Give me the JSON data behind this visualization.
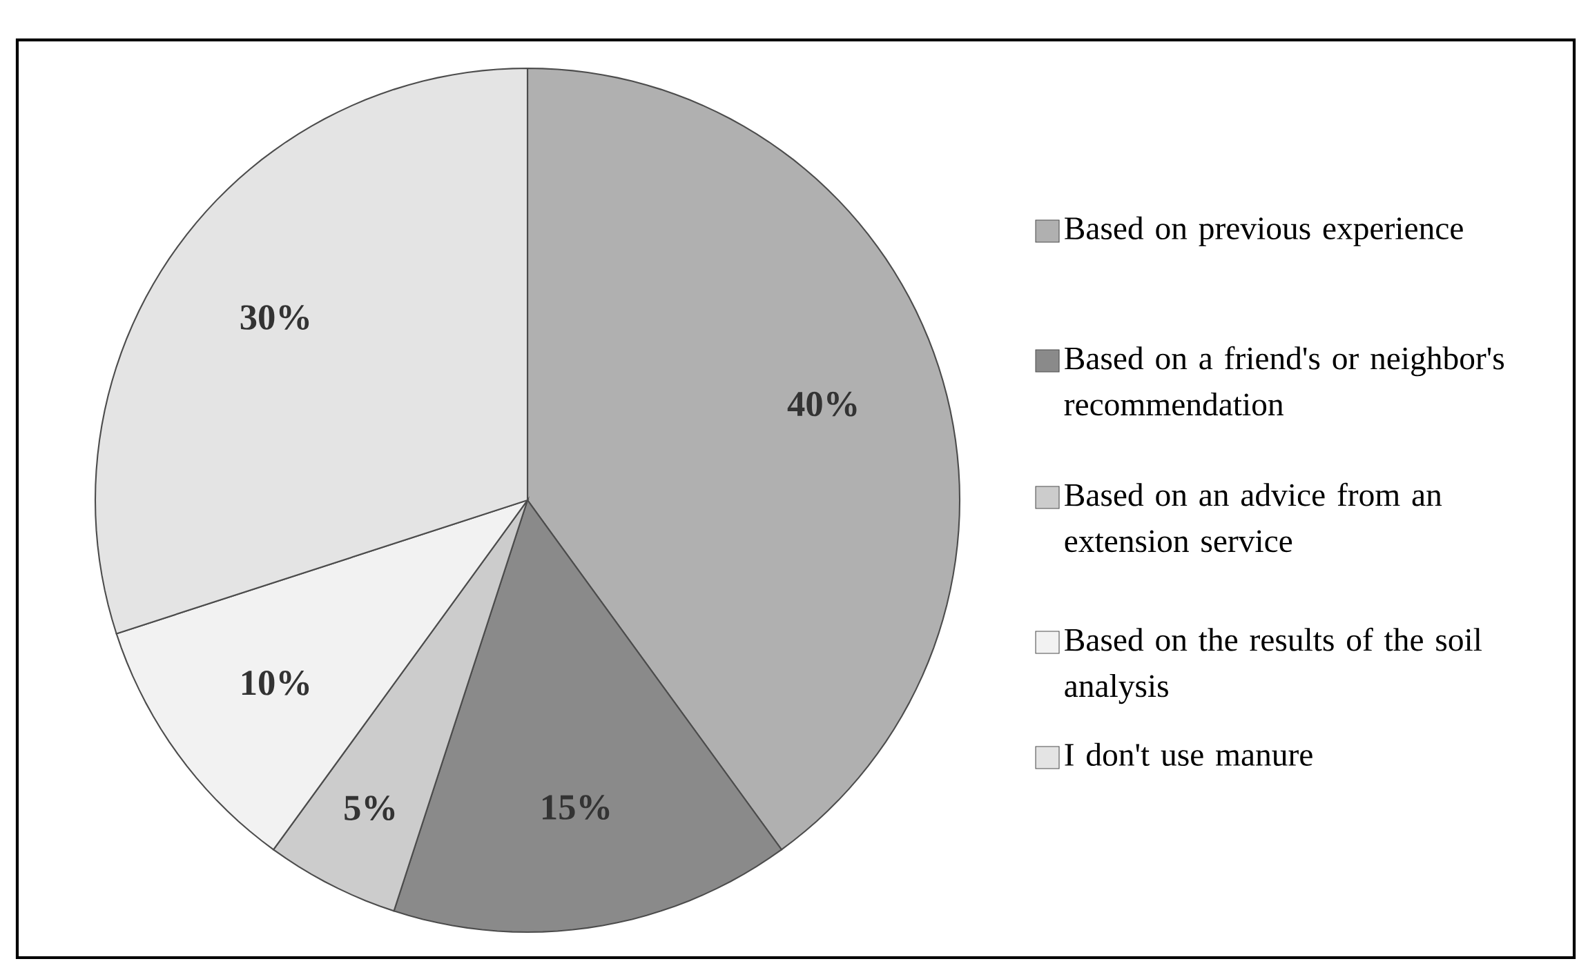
{
  "chart_data": {
    "type": "pie",
    "categories": [
      "Based on previous experience",
      "Based on a friend's or neighbor's recommendation",
      "Based on an advice from an extension service",
      "Based on the results of the soil analysis",
      "I don't use manure"
    ],
    "values": [
      40,
      15,
      5,
      10,
      30
    ],
    "colors": [
      "#b0b0b0",
      "#8a8a8a",
      "#cccccc",
      "#f2f2f2",
      "#e4e4e4"
    ],
    "value_labels": [
      "40%",
      "15%",
      "5%",
      "10%",
      "30%"
    ],
    "legend": "right"
  }
}
